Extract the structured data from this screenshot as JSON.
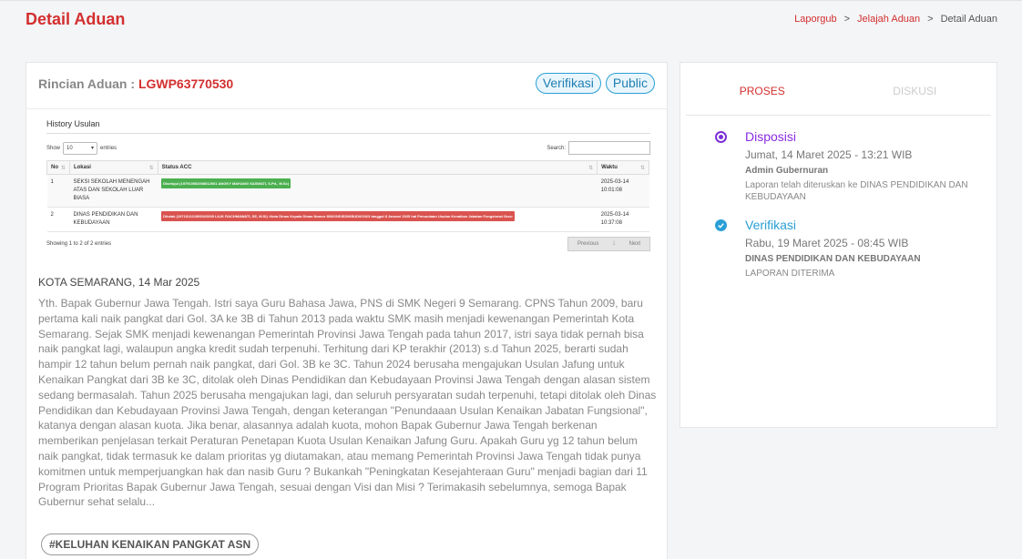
{
  "header": {
    "title": "Detail Aduan",
    "breadcrumb": [
      {
        "label": "Laporgub"
      },
      {
        "label": "Jelajah Aduan"
      },
      {
        "label": "Detail Aduan"
      }
    ],
    "separator": ">"
  },
  "detail": {
    "label": "Rincian Aduan : ",
    "code": "LGWP63770530",
    "badges": [
      "Verifikasi",
      "Public"
    ]
  },
  "history": {
    "title": "History Usulan",
    "show_label": "Show",
    "entries_value": "10",
    "entries_label": "entries",
    "search_label": "Search:",
    "columns": [
      "No",
      "Lokasi",
      "Status ACC",
      "Waktu"
    ],
    "rows": [
      {
        "no": "1",
        "lokasi": "SEKSI SEKOLAH MENENGAH ATAS DAN SEKOLAH LUAR BIASA",
        "status": "Disetujui (197910052008012001 ANGKY MAHANG SASWATI, S.Pd., M.Sc)",
        "status_color": "#4caf50",
        "waktu_date": "2025-03-14",
        "waktu_time": "10:01:08"
      },
      {
        "no": "2",
        "lokasi": "DINAS PENDIDIKAN DAN KEBUDAYAAN",
        "status": "Ditolak (197101221993022005 LILIK RACHMAWATI, SE, M.Si) :Nota Dinas Kepala Dinas Nomor 800/29/DISDIKBUD/I/2023 tanggal 8 Januari 2025 hal Penundaan Usulan Kenaikan Jabatan Fungsional Guru",
        "status_color": "#d9534f",
        "waktu_date": "2025-03-14",
        "waktu_time": "10:37:08"
      }
    ],
    "info": "Showing 1 to 2 of 2 entries",
    "pager": {
      "prev": "Previous",
      "current": "1",
      "next": "Next"
    }
  },
  "complaint": {
    "location_date": "KOTA SEMARANG, 14 Mar 2025",
    "text": "Yth. Bapak Gubernur Jawa Tengah. Istri saya Guru Bahasa Jawa, PNS di SMK Negeri 9 Semarang. CPNS Tahun 2009, baru pertama kali naik pangkat dari Gol. 3A ke 3B di Tahun 2013 pada waktu SMK masih menjadi kewenangan Pemerintah Kota Semarang. Sejak SMK menjadi kewenangan Pemerintah Provinsi Jawa Tengah pada tahun 2017, istri saya tidak pernah bisa naik pangkat lagi, walaupun angka kredit sudah terpenuhi. Terhitung dari KP terakhir (2013) s.d Tahun 2025, berarti sudah hampir 12 tahun belum pernah naik pangkat, dari Gol. 3B ke 3C. Tahun 2024 berusaha mengajukan Usulan Jafung untuk Kenaikan Pangkat dari 3B ke 3C, ditolak oleh Dinas Pendidikan dan Kebudayaan Provinsi Jawa Tengah dengan alasan sistem sedang bermasalah. Tahun 2025 berusaha mengajukan lagi, dan seluruh persyaratan sudah terpenuhi, tetapi ditolak oleh Dinas Pendidikan dan Kebudayaan Provinsi Jawa Tengah, dengan keterangan \"Penundaaan Usulan Kenaikan Jabatan Fungsional\", katanya dengan alasan kuota. Jika benar, alasannya adalah kuota, mohon Bapak Gubernur Jawa Tengah berkenan memberikan penjelasan terkait Peraturan Penetapan Kuota Usulan Kenaikan Jafung Guru. Apakah Guru yg 12 tahun belum naik pangkat, tidak termasuk ke dalam prioritas yg diutamakan, atau memang Pemerintah Provinsi Jawa Tengah tidak punya komitmen untuk memperjuangkan hak dan nasib Guru ? Bukankah \"Peningkatan Kesejahteraan Guru\" menjadi bagian dari 11 Program Prioritas Bapak Gubernur Jawa Tengah, sesuai dengan Visi dan Misi ? Terimakasih sebelumnya, semoga Bapak Gubernur sehat selalu...",
    "hashtag": "#KELUHAN KENAIKAN PANGKAT ASN"
  },
  "sidebar": {
    "tabs": [
      "PROSES",
      "DISKUSI"
    ],
    "timeline": [
      {
        "title": "Disposisi",
        "date": "Jumat, 14 Maret 2025 - 13:21 WIB",
        "actor": "Admin Gubernuran",
        "desc": "Laporan telah diteruskan ke DINAS PENDIDIKAN DAN KEBUDAYAAN",
        "icon": "radio-dot-icon",
        "color": "#8a2be2"
      },
      {
        "title": "Verifikasi",
        "date": "Rabu, 19 Maret 2025 - 08:45 WIB",
        "actor": "DINAS PENDIDIKAN DAN KEBUDAYAAN",
        "desc": "LAPORAN DITERIMA",
        "icon": "check-circle-icon",
        "color": "#2a9fd6"
      }
    ]
  }
}
